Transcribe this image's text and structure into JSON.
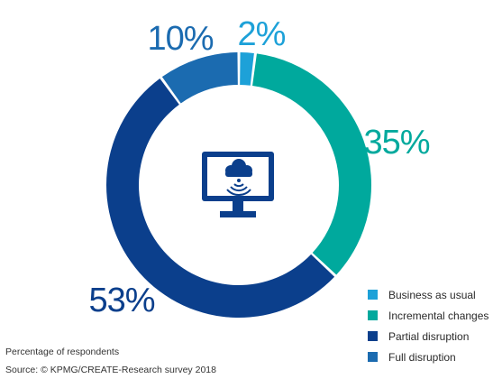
{
  "chart_data": {
    "type": "pie",
    "categories": [
      "Business as usual",
      "Incremental changes",
      "Partial disruption",
      "Full disruption"
    ],
    "values": [
      2,
      35,
      53,
      10
    ],
    "labels": [
      "2%",
      "35%",
      "53%",
      "10%"
    ],
    "colors": [
      "#1da1d8",
      "#00a99d",
      "#0b3f8c",
      "#1b6bb0"
    ],
    "donut": true,
    "legend_position": "bottom-right"
  },
  "center_icon": "cloud-monitor-icon",
  "notes": {
    "respondents": "Percentage of respondents",
    "source": "Source: © KPMG/CREATE-Research survey 2018"
  }
}
